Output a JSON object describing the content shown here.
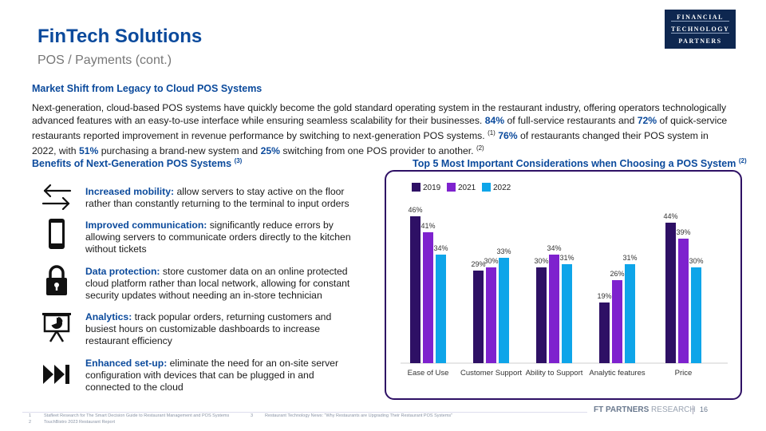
{
  "header": {
    "title": "FinTech Solutions",
    "subtitle": "POS / Payments (cont.)",
    "logo_lines": [
      "FINANCIAL",
      "TECHNOLOGY",
      "PARTNERS"
    ]
  },
  "market_shift": {
    "heading": "Market Shift from Legacy to Cloud POS Systems",
    "p1": "Next-generation, cloud-based POS systems have quickly become the gold standard operating system in the restaurant industry, offering operators technologically advanced features with an easy-to-use interface while ensuring seamless scalability for their businesses.",
    "stat1": "84%",
    "p2": "of full-service restaurants and",
    "stat2": "72%",
    "p3": "of quick-service restaurants reported improvement in revenue performance by switching to next-generation POS systems.",
    "ref1": "(1)",
    "stat3": "76%",
    "p4": "of restaurants changed their POS system in 2022, with",
    "stat4": "51%",
    "p5": "purchasing a brand-new system and",
    "stat5": "25%",
    "p6": "switching from one POS provider to another.",
    "ref2": "(2)"
  },
  "benefits": {
    "heading": "Benefits of Next-Generation POS Systems",
    "ref": "(3)",
    "items": [
      {
        "head": "Increased mobility:",
        "text": "allow servers to stay active on the floor rather than constantly returning to the terminal to input orders",
        "icon": "arrows-swap-icon"
      },
      {
        "head": "Improved communication:",
        "text": "significantly reduce errors by allowing servers to communicate orders directly to the kitchen without tickets",
        "icon": "mobile-phone-icon"
      },
      {
        "head": "Data protection:",
        "text": "store customer data on an online protected cloud platform rather than local network, allowing for constant security updates without needing an in-store technician",
        "icon": "padlock-icon"
      },
      {
        "head": "Analytics:",
        "text": "track popular orders, returning customers and busiest hours on customizable dashboards to increase restaurant efficiency",
        "icon": "presentation-chart-icon"
      },
      {
        "head": "Enhanced set-up:",
        "text": "eliminate the need for an on-site server configuration with devices that can be plugged in and connected to the cloud",
        "icon": "fast-forward-icon"
      }
    ]
  },
  "chart_heading": {
    "text": "Top 5 Most Important Considerations when Choosing a POS System",
    "ref": "(2)"
  },
  "chart_data": {
    "type": "bar",
    "categories": [
      "Ease of Use",
      "Customer Support",
      "Ability to Support",
      "Analytic features",
      "Price"
    ],
    "series": [
      {
        "name": "2019",
        "values": [
          46,
          29,
          30,
          19,
          44
        ],
        "labels": [
          "46%",
          "29%",
          "30%",
          "19%",
          "44%"
        ],
        "color": "#2e1065"
      },
      {
        "name": "2021",
        "values": [
          41,
          30,
          34,
          26,
          39
        ],
        "labels": [
          "41%",
          "30%",
          "34%",
          "26%",
          "39%"
        ],
        "color": "#7e22ce"
      },
      {
        "name": "2022",
        "values": [
          34,
          33,
          31,
          31,
          30
        ],
        "labels": [
          "34%",
          "33%",
          "31%",
          "31%",
          "30%"
        ],
        "color": "#0ea5e9"
      }
    ],
    "ylim": [
      0,
      50
    ],
    "legend_position": "top-left",
    "grid": false
  },
  "footer": {
    "brand": "FT PARTNERS",
    "brand_suffix": "RESEARCH",
    "page": "16",
    "notes": [
      {
        "num": "1",
        "text": "Stafleet Research for The Smart Decision Guide to Restaurant Management and POS Systems"
      },
      {
        "num": "2",
        "text": "TouchBistro 2023 Restaurant Report"
      },
      {
        "num": "3",
        "text": "Restaurant Technology News: \"Why Restaurants are Upgrading Their Restaurant POS Systems\""
      }
    ]
  }
}
